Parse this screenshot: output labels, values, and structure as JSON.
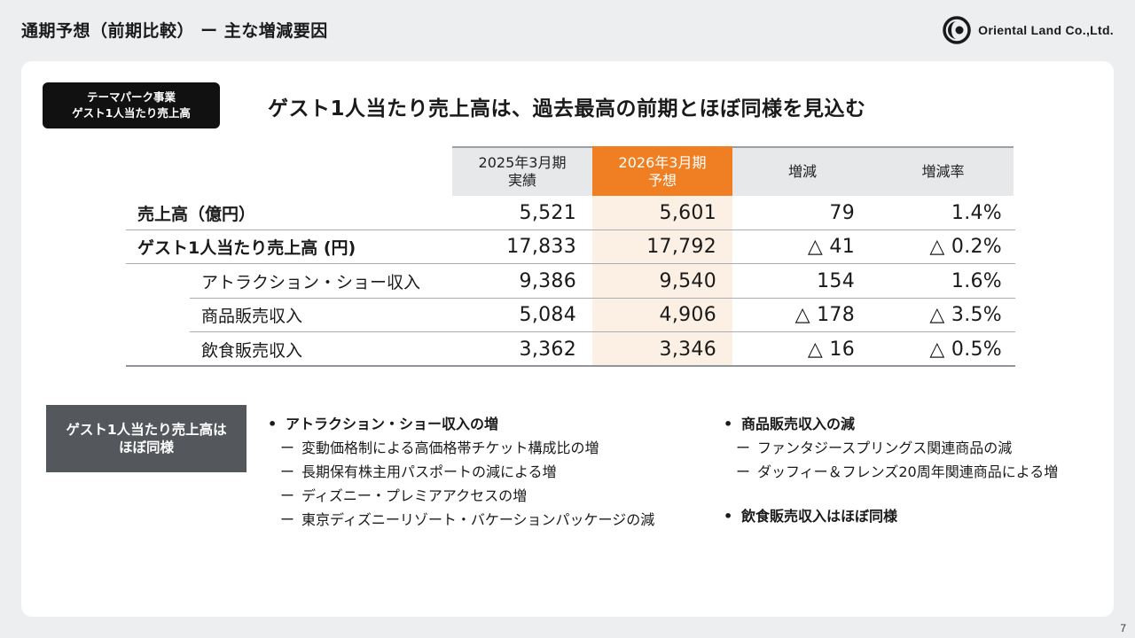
{
  "header": {
    "title": "通期予想（前期比較） ー 主な増減要因",
    "logo_text": "Oriental Land Co.,Ltd."
  },
  "segment_badge": {
    "line1": "テーマパーク事業",
    "line2": "ゲスト1人当たり売上高"
  },
  "headline": "ゲスト1人当たり売上高は、過去最高の前期とほぼ同様を見込む",
  "table": {
    "columns": [
      {
        "line1": "2025年3月期",
        "line2": "実績"
      },
      {
        "line1": "2026年3月期",
        "line2": "予想"
      },
      {
        "line1": "増減",
        "line2": ""
      },
      {
        "line1": "増減率",
        "line2": ""
      }
    ],
    "rows": [
      {
        "label": "売上高（億円）",
        "values": [
          "5,521",
          "5,601",
          "79",
          "1.4%"
        ]
      },
      {
        "label": "ゲスト1人当たり売上高 (円)",
        "values": [
          "17,833",
          "17,792",
          "△ 41",
          "△ 0.2%"
        ]
      },
      {
        "label": "アトラクション・ショー収入",
        "values": [
          "9,386",
          "9,540",
          "154",
          "1.6%"
        ]
      },
      {
        "label": "商品販売収入",
        "values": [
          "5,084",
          "4,906",
          "△ 178",
          "△ 3.5%"
        ]
      },
      {
        "label": "飲食販売収入",
        "values": [
          "3,362",
          "3,346",
          "△ 16",
          "△ 0.5%"
        ]
      }
    ]
  },
  "factor_badge": {
    "line1": "ゲスト1人当たり売上高は",
    "line2": "ほぼ同様"
  },
  "factors": {
    "bullet_symbol": "•",
    "dash_symbol": "ー",
    "left": {
      "title": "アトラクション・ショー収入の増",
      "items": [
        "変動価格制による高価格帯チケット構成比の増",
        "長期保有株主用パスポートの減による増",
        "ディズニー・プレミアアクセスの増",
        "東京ディズニーリゾート・バケーションパッケージの減"
      ]
    },
    "right": {
      "title": "商品販売収入の減",
      "items": [
        "ファンタジースプリングス関連商品の減",
        "ダッフィー＆フレンズ20周年関連商品による増"
      ],
      "title2": "飲食販売収入はほぼ同様"
    }
  },
  "page_number": "7",
  "colors": {
    "accent": "#ef7f22",
    "accent_light": "#fcefe4",
    "badge_dark": "#111111",
    "badge_grey": "#54585c"
  }
}
